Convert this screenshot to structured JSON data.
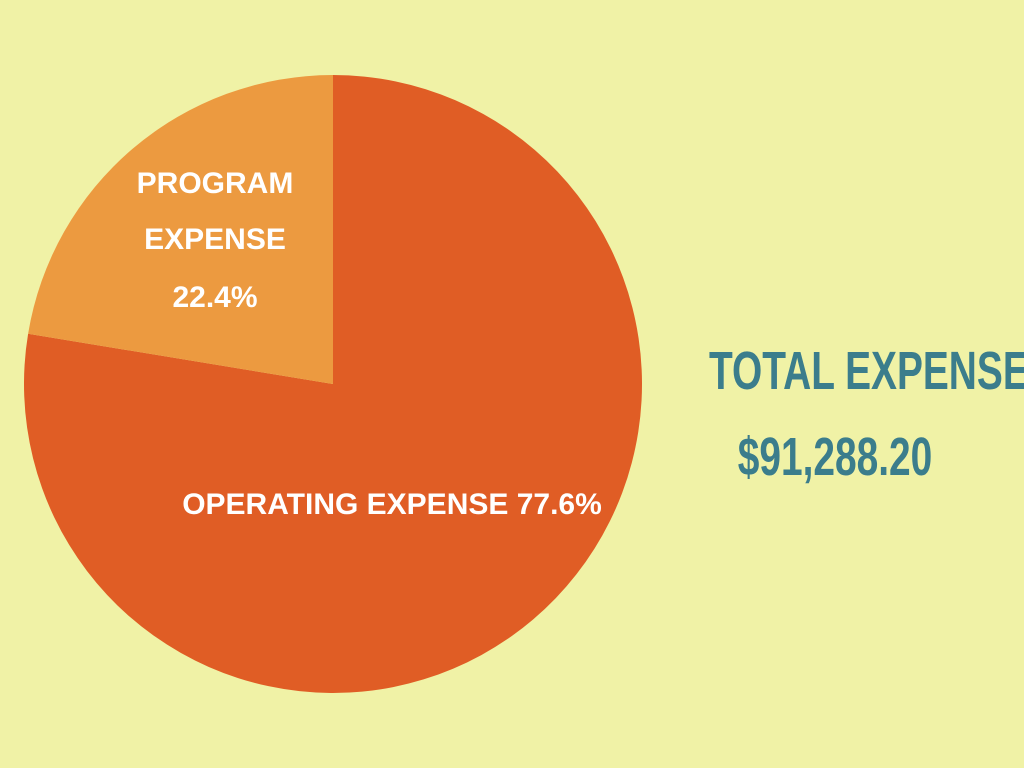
{
  "colors": {
    "background": "#f0f2a6",
    "total_text": "#3b7d8c",
    "label_text": "#ffffff"
  },
  "total": {
    "label": "TOTAL EXPENSE:",
    "amount": "$91,288.20"
  },
  "chart_data": {
    "type": "pie",
    "slices": [
      {
        "name": "OPERATING EXPENSE",
        "value": 77.6,
        "value_label": "77.6%",
        "color": "#e05d25"
      },
      {
        "name": "PROGRAM EXPENSE",
        "value": 22.4,
        "value_label": "22.4%",
        "color": "#ec9a40"
      }
    ],
    "start_angle_deg": 0,
    "direction": "clockwise"
  }
}
